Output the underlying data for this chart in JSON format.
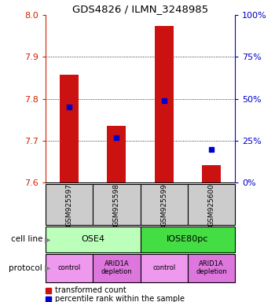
{
  "title": "GDS4826 / ILMN_3248985",
  "samples": [
    "GSM925597",
    "GSM925598",
    "GSM925599",
    "GSM925600"
  ],
  "transformed_counts": [
    7.857,
    7.735,
    7.975,
    7.642
  ],
  "percentile_ranks": [
    45,
    27,
    49,
    20
  ],
  "ylim": [
    7.6,
    8.0
  ],
  "yticks": [
    7.6,
    7.7,
    7.8,
    7.9,
    8.0
  ],
  "right_yticks": [
    0,
    25,
    50,
    75,
    100
  ],
  "bar_color": "#cc1111",
  "dot_color": "#0000cc",
  "bar_bottom": 7.6,
  "cell_line_groups": [
    {
      "label": "OSE4",
      "span": [
        0,
        2
      ],
      "color": "#bbffbb"
    },
    {
      "label": "IOSE80pc",
      "span": [
        2,
        4
      ],
      "color": "#44dd44"
    }
  ],
  "protocol_groups": [
    {
      "label": "control",
      "span": [
        0,
        1
      ],
      "color": "#ee99ee"
    },
    {
      "label": "ARID1A\ndepletion",
      "span": [
        1,
        2
      ],
      "color": "#dd77dd"
    },
    {
      "label": "control",
      "span": [
        2,
        3
      ],
      "color": "#ee99ee"
    },
    {
      "label": "ARID1A\ndepletion",
      "span": [
        3,
        4
      ],
      "color": "#dd77dd"
    }
  ],
  "legend_red_label": "transformed count",
  "legend_blue_label": "percentile rank within the sample",
  "left_axis_color": "#cc2200",
  "right_axis_color": "#0000cc",
  "gsm_box_color": "#cccccc"
}
